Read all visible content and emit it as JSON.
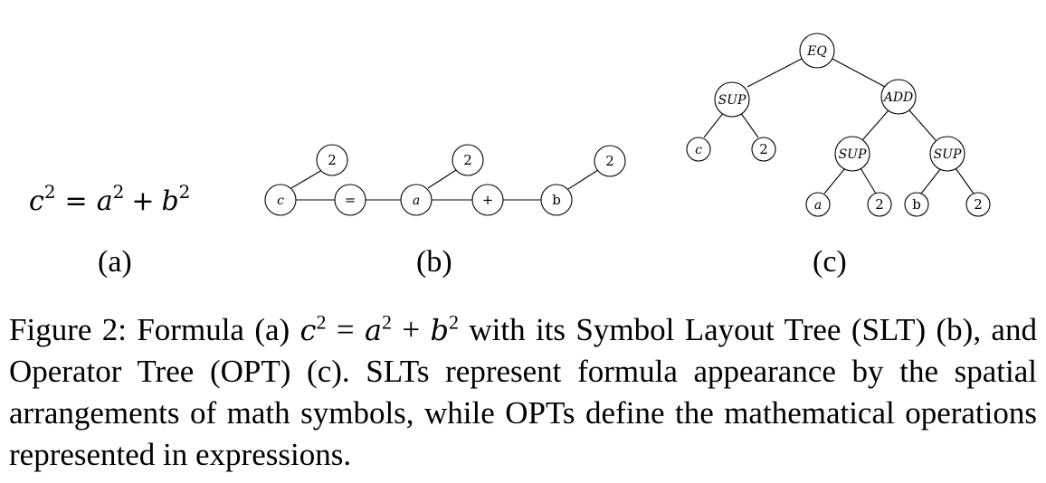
{
  "formula": {
    "base_c": "c",
    "exp_c": "2",
    "eq": "=",
    "base_a": "a",
    "exp_a": "2",
    "plus": "+",
    "base_b": "b",
    "exp_b": "2"
  },
  "panel_labels": {
    "a": "(a)",
    "b": "(b)",
    "c": "(c)"
  },
  "slt": {
    "nodes": [
      "c",
      "=",
      "a",
      "+",
      "b"
    ],
    "superscripts": [
      "2",
      "2",
      "2"
    ]
  },
  "opt": {
    "root": "EQ",
    "left_sup": "SUP",
    "left_base": "c",
    "left_exp": "2",
    "add": "ADD",
    "sup_a": "SUP",
    "sup_a_base": "a",
    "sup_a_exp": "2",
    "sup_b": "SUP",
    "sup_b_base": "b",
    "sup_b_exp": "2"
  },
  "caption": {
    "prefix": "Figure 2: Formula (a) ",
    "c": "c",
    "c_exp": "2",
    "eq": " = ",
    "a": "a",
    "a_exp": "2",
    "plus": " + ",
    "b": "b",
    "b_exp": "2",
    "text": " with its Symbol Layout Tree (SLT) (b), and Operator Tree (OPT) (c). SLTs represent formula appearance by the spatial arrangements of math symbols, while OPTs define the mathematical operations represented in expressions."
  }
}
